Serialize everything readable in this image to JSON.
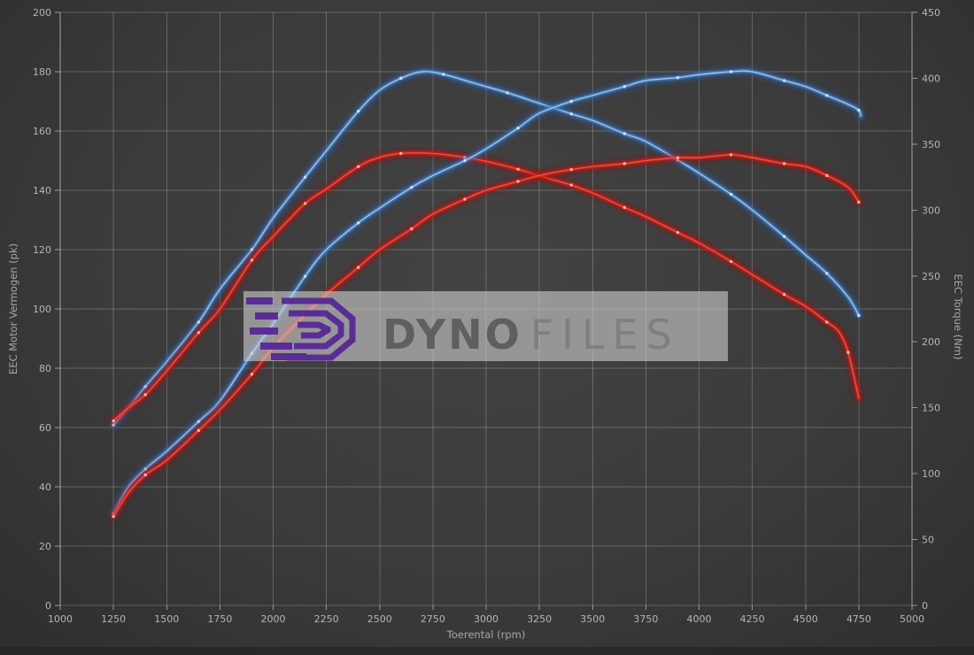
{
  "watermark": {
    "brand_bold": "DYNO",
    "brand_light": "FILES",
    "logo_color": "#5a2d96",
    "box_color": "#cccccc"
  },
  "colors": {
    "background": "#3b3b3b",
    "grid": "#888888",
    "tick_text": "#b5b5b5",
    "curve_blue": "#4f8fd3",
    "curve_blue_core": "#b4d6f2",
    "curve_red": "#e02318",
    "curve_red_core": "#ff6a5a"
  },
  "chart_data": {
    "type": "line",
    "title": "",
    "xlabel": "Toerental (rpm)",
    "ylabel_left": "EEC Motor Vermogen (pk)",
    "ylabel_right": "EEC Torque (Nm)",
    "x_range": [
      1000,
      5000
    ],
    "x_ticks": [
      1000,
      1250,
      1500,
      1750,
      2000,
      2250,
      2500,
      2750,
      3000,
      3250,
      3500,
      3750,
      4000,
      4250,
      4500,
      4750,
      5000
    ],
    "y_left_range": [
      0,
      200
    ],
    "y_left_ticks": [
      0,
      20,
      40,
      60,
      80,
      100,
      120,
      140,
      160,
      180,
      200
    ],
    "y_right_range": [
      0,
      450
    ],
    "y_right_ticks": [
      0,
      50,
      100,
      150,
      200,
      250,
      300,
      350,
      400,
      450
    ],
    "grid": true,
    "legend": "none",
    "series": [
      {
        "name": "torque-blue-tuned",
        "axis": "right",
        "unit": "Nm",
        "color": "#4f8fd3",
        "peak": {
          "rpm": 2700,
          "value": 405
        },
        "points": [
          [
            1250,
            137
          ],
          [
            1320,
            150
          ],
          [
            1400,
            166
          ],
          [
            1500,
            185
          ],
          [
            1650,
            215
          ],
          [
            1750,
            240
          ],
          [
            1900,
            270
          ],
          [
            2000,
            294
          ],
          [
            2150,
            325
          ],
          [
            2250,
            345
          ],
          [
            2400,
            375
          ],
          [
            2500,
            391
          ],
          [
            2600,
            400
          ],
          [
            2700,
            405
          ],
          [
            2800,
            403
          ],
          [
            2950,
            396
          ],
          [
            3100,
            389
          ],
          [
            3250,
            381
          ],
          [
            3400,
            373
          ],
          [
            3500,
            368
          ],
          [
            3650,
            358
          ],
          [
            3750,
            352
          ],
          [
            3900,
            338
          ],
          [
            4000,
            328
          ],
          [
            4150,
            312
          ],
          [
            4250,
            300
          ],
          [
            4400,
            280
          ],
          [
            4500,
            266
          ],
          [
            4600,
            252
          ],
          [
            4700,
            234
          ],
          [
            4750,
            220
          ]
        ]
      },
      {
        "name": "torque-red-stock",
        "axis": "right",
        "unit": "Nm",
        "color": "#e02318",
        "peak": {
          "rpm": 2700,
          "value": 343
        },
        "points": [
          [
            1250,
            140
          ],
          [
            1320,
            150
          ],
          [
            1400,
            160
          ],
          [
            1500,
            178
          ],
          [
            1650,
            207
          ],
          [
            1750,
            225
          ],
          [
            1900,
            262
          ],
          [
            2000,
            280
          ],
          [
            2150,
            305
          ],
          [
            2250,
            316
          ],
          [
            2400,
            333
          ],
          [
            2500,
            340
          ],
          [
            2600,
            343
          ],
          [
            2750,
            343
          ],
          [
            2900,
            340
          ],
          [
            3000,
            337
          ],
          [
            3150,
            331
          ],
          [
            3250,
            326
          ],
          [
            3400,
            319
          ],
          [
            3500,
            313
          ],
          [
            3650,
            302
          ],
          [
            3750,
            295
          ],
          [
            3900,
            283
          ],
          [
            4000,
            275
          ],
          [
            4150,
            261
          ],
          [
            4250,
            251
          ],
          [
            4400,
            236
          ],
          [
            4500,
            227
          ],
          [
            4600,
            215
          ],
          [
            4655,
            208
          ],
          [
            4700,
            192
          ],
          [
            4750,
            157
          ]
        ]
      },
      {
        "name": "power-blue-tuned",
        "axis": "left",
        "unit": "pk",
        "color": "#4f8fd3",
        "peak": {
          "rpm": 4150,
          "value": 180
        },
        "points": [
          [
            1250,
            31
          ],
          [
            1320,
            40
          ],
          [
            1400,
            46
          ],
          [
            1500,
            52
          ],
          [
            1650,
            62
          ],
          [
            1750,
            69
          ],
          [
            1900,
            85
          ],
          [
            2000,
            95
          ],
          [
            2150,
            111
          ],
          [
            2250,
            120
          ],
          [
            2400,
            129
          ],
          [
            2500,
            134
          ],
          [
            2650,
            141
          ],
          [
            2750,
            145
          ],
          [
            2900,
            150
          ],
          [
            3000,
            154
          ],
          [
            3150,
            161
          ],
          [
            3250,
            166
          ],
          [
            3400,
            170
          ],
          [
            3500,
            172
          ],
          [
            3650,
            175
          ],
          [
            3750,
            177
          ],
          [
            3900,
            178
          ],
          [
            4000,
            179
          ],
          [
            4150,
            180
          ],
          [
            4250,
            180
          ],
          [
            4400,
            177
          ],
          [
            4500,
            175
          ],
          [
            4600,
            172
          ],
          [
            4700,
            169
          ],
          [
            4750,
            167
          ],
          [
            4760,
            165
          ]
        ]
      },
      {
        "name": "power-red-stock",
        "axis": "left",
        "unit": "pk",
        "color": "#e02318",
        "peak": {
          "rpm": 4150,
          "value": 152
        },
        "points": [
          [
            1250,
            30
          ],
          [
            1320,
            38
          ],
          [
            1400,
            44
          ],
          [
            1500,
            49
          ],
          [
            1650,
            59
          ],
          [
            1750,
            66
          ],
          [
            1900,
            78
          ],
          [
            2000,
            87
          ],
          [
            2150,
            98
          ],
          [
            2250,
            105
          ],
          [
            2400,
            114
          ],
          [
            2500,
            120
          ],
          [
            2650,
            127
          ],
          [
            2750,
            132
          ],
          [
            2900,
            137
          ],
          [
            3000,
            140
          ],
          [
            3150,
            143
          ],
          [
            3250,
            145
          ],
          [
            3400,
            147
          ],
          [
            3500,
            148
          ],
          [
            3650,
            149
          ],
          [
            3750,
            150
          ],
          [
            3900,
            151
          ],
          [
            4000,
            151
          ],
          [
            4150,
            152
          ],
          [
            4250,
            151
          ],
          [
            4400,
            149
          ],
          [
            4500,
            148
          ],
          [
            4600,
            145
          ],
          [
            4700,
            141
          ],
          [
            4750,
            136
          ]
        ]
      }
    ]
  }
}
